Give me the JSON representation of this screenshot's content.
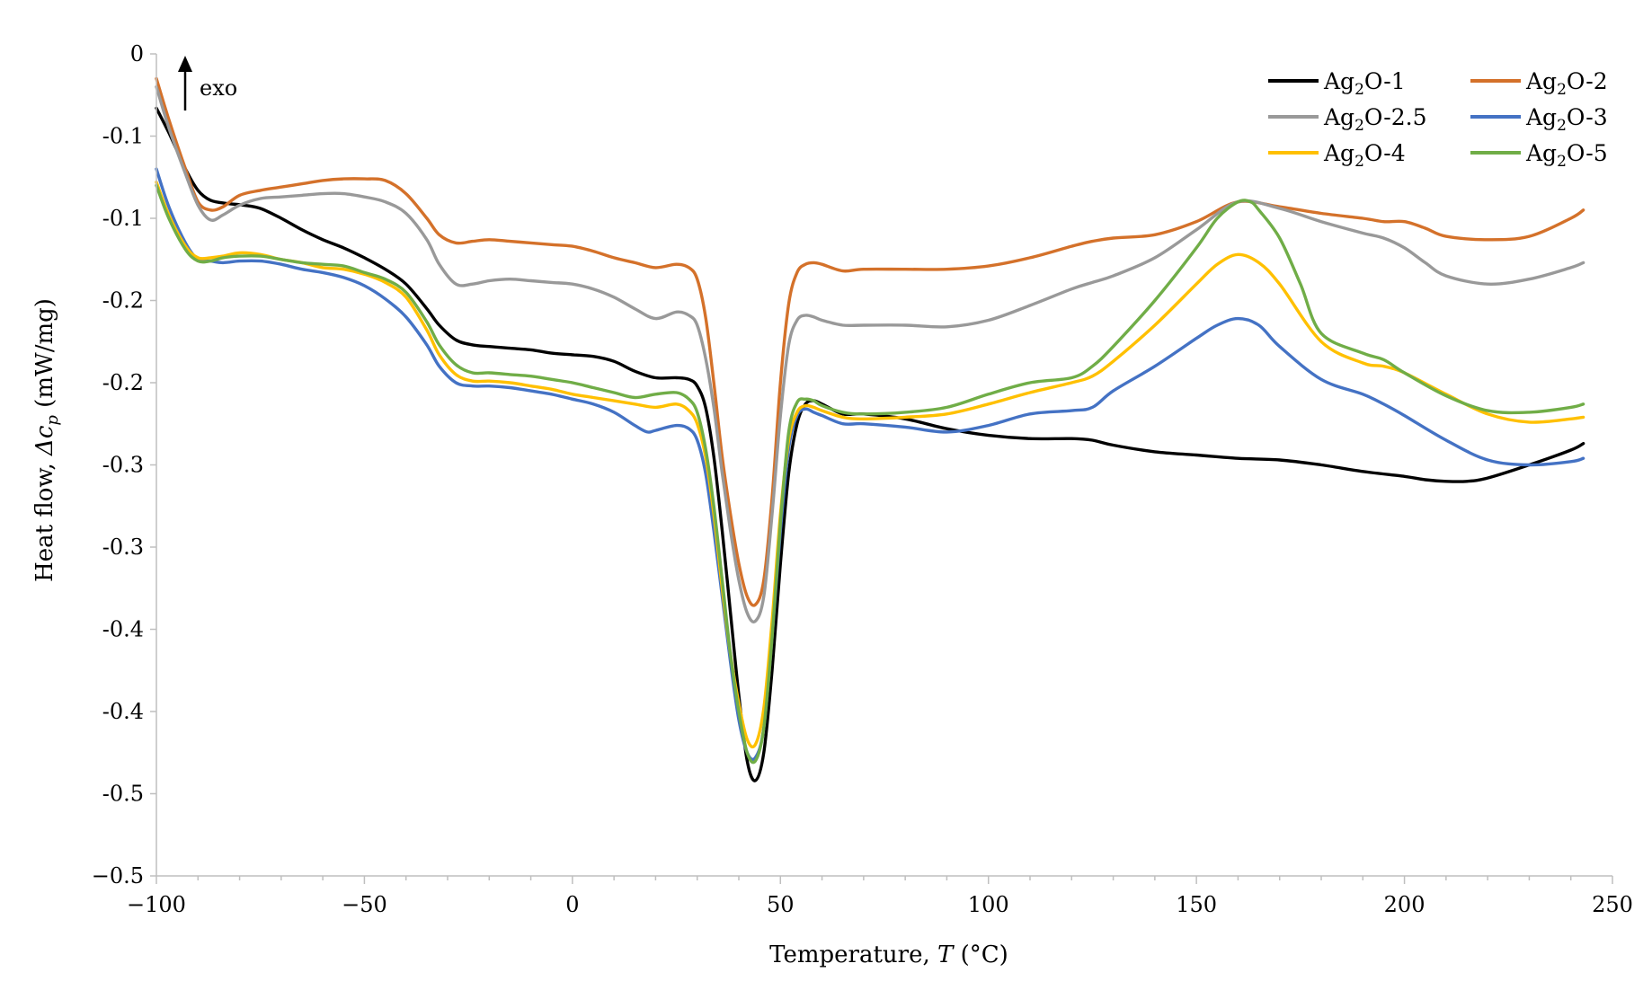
{
  "chart_data": {
    "type": "line",
    "title": "",
    "xlabel_prefix": "Temperature, ",
    "xlabel_var": "T",
    "xlabel_unit": " (°C)",
    "ylabel_prefix": "Heat flow, ",
    "ylabel_var": "Δc",
    "ylabel_sub": "p",
    "ylabel_unit": " (mW/mg)",
    "xlim": [
      -100,
      250
    ],
    "ylim": [
      -0.5,
      0
    ],
    "x_ticks": [
      -100,
      -50,
      0,
      50,
      100,
      150,
      200,
      250
    ],
    "x_tick_labels": [
      "−100",
      "−50",
      "0",
      "50",
      "100",
      "150",
      "200",
      "250"
    ],
    "y_ticks": [
      0,
      -0.05,
      -0.1,
      -0.15,
      -0.2,
      -0.25,
      -0.3,
      -0.35,
      -0.4,
      -0.45,
      -0.5
    ],
    "y_tick_labels": [
      "0",
      "-0.1",
      "-0.1",
      "-0.2",
      "-0.2",
      "-0.3",
      "-0.3",
      "-0.4",
      "-0.4",
      "-0.5",
      "−0.5"
    ],
    "grid": false,
    "annotation": "exo",
    "legend_position": "top-right",
    "series": [
      {
        "name": "Ag2O-1",
        "label_main": "Ag",
        "label_sub": "2",
        "label_rest": "O-1",
        "color": "#000000",
        "x": [
          -100,
          -97,
          -93,
          -90,
          -87,
          -83,
          -79,
          -75,
          -70,
          -65,
          -60,
          -55,
          -50,
          -45,
          -40,
          -35,
          -32,
          -28,
          -24,
          -20,
          -15,
          -10,
          -5,
          0,
          5,
          10,
          0,
          15,
          20,
          25,
          28,
          30,
          32,
          34,
          36,
          38,
          40,
          42,
          44,
          46,
          48,
          50,
          52,
          54,
          56,
          58,
          60,
          65,
          70,
          80,
          90,
          100,
          110,
          120,
          125,
          130,
          140,
          150,
          160,
          170,
          180,
          190,
          200,
          205,
          210,
          215,
          220,
          230,
          240,
          243
        ],
        "y": [
          -0.033,
          -0.048,
          -0.07,
          -0.083,
          -0.089,
          -0.091,
          -0.092,
          -0.094,
          -0.1,
          -0.107,
          -0.113,
          -0.118,
          -0.124,
          -0.131,
          -0.14,
          -0.155,
          -0.165,
          -0.174,
          -0.177,
          -0.178,
          -0.179,
          -0.18,
          -0.182,
          -0.183,
          -0.184,
          -0.187,
          -0.183,
          -0.193,
          -0.197,
          -0.197,
          -0.198,
          -0.202,
          -0.215,
          -0.245,
          -0.29,
          -0.34,
          -0.39,
          -0.43,
          -0.442,
          -0.425,
          -0.375,
          -0.31,
          -0.255,
          -0.225,
          -0.213,
          -0.211,
          -0.213,
          -0.219,
          -0.219,
          -0.222,
          -0.228,
          -0.232,
          -0.234,
          -0.234,
          -0.235,
          -0.238,
          -0.242,
          -0.244,
          -0.246,
          -0.247,
          -0.25,
          -0.254,
          -0.257,
          -0.259,
          -0.26,
          -0.26,
          -0.258,
          -0.25,
          -0.241,
          -0.237
        ]
      },
      {
        "name": "Ag2O-2",
        "label_main": "Ag",
        "label_sub": "2",
        "label_rest": "O-2",
        "color": "#D4712A",
        "x": [
          -100,
          -97,
          -93,
          -90,
          -87,
          -84,
          -80,
          -75,
          -70,
          -65,
          -60,
          -55,
          -50,
          -45,
          -40,
          -35,
          -32,
          -28,
          -24,
          -20,
          -15,
          -10,
          -5,
          0,
          5,
          10,
          15,
          20,
          25,
          28,
          30,
          32,
          34,
          36,
          38,
          40,
          42,
          44,
          46,
          48,
          50,
          52,
          54,
          56,
          58,
          60,
          65,
          70,
          80,
          90,
          100,
          110,
          120,
          125,
          130,
          140,
          150,
          160,
          170,
          180,
          190,
          195,
          200,
          205,
          210,
          220,
          230,
          240,
          243
        ],
        "y": [
          -0.015,
          -0.04,
          -0.07,
          -0.09,
          -0.095,
          -0.093,
          -0.086,
          -0.083,
          -0.081,
          -0.079,
          -0.077,
          -0.076,
          -0.076,
          -0.077,
          -0.085,
          -0.1,
          -0.11,
          -0.115,
          -0.114,
          -0.113,
          -0.114,
          -0.115,
          -0.116,
          -0.117,
          -0.12,
          -0.124,
          -0.127,
          -0.13,
          -0.128,
          -0.13,
          -0.137,
          -0.16,
          -0.2,
          -0.245,
          -0.28,
          -0.31,
          -0.33,
          -0.335,
          -0.32,
          -0.27,
          -0.2,
          -0.152,
          -0.133,
          -0.128,
          -0.127,
          -0.128,
          -0.132,
          -0.131,
          -0.131,
          -0.131,
          -0.129,
          -0.124,
          -0.117,
          -0.114,
          -0.112,
          -0.11,
          -0.102,
          -0.09,
          -0.093,
          -0.097,
          -0.1,
          -0.102,
          -0.102,
          -0.106,
          -0.111,
          -0.113,
          -0.111,
          -0.1,
          -0.095
        ]
      },
      {
        "name": "Ag2O-2.5",
        "label_main": "Ag",
        "label_sub": "2",
        "label_rest": "O-2.5",
        "color": "#999999",
        "x": [
          -100,
          -97,
          -93,
          -90,
          -87,
          -84,
          -80,
          -75,
          -70,
          -65,
          -60,
          -55,
          -50,
          -45,
          -40,
          -35,
          -32,
          -28,
          -24,
          -20,
          -15,
          -10,
          -5,
          0,
          5,
          10,
          15,
          20,
          25,
          28,
          30,
          32,
          34,
          36,
          38,
          40,
          42,
          44,
          46,
          48,
          50,
          52,
          54,
          56,
          58,
          60,
          65,
          70,
          80,
          90,
          100,
          110,
          120,
          125,
          130,
          140,
          150,
          160,
          170,
          180,
          190,
          195,
          200,
          205,
          210,
          220,
          230,
          240,
          243
        ],
        "y": [
          -0.02,
          -0.045,
          -0.073,
          -0.092,
          -0.101,
          -0.098,
          -0.092,
          -0.088,
          -0.087,
          -0.086,
          -0.085,
          -0.085,
          -0.087,
          -0.09,
          -0.097,
          -0.113,
          -0.128,
          -0.14,
          -0.14,
          -0.138,
          -0.137,
          -0.138,
          -0.139,
          -0.14,
          -0.143,
          -0.148,
          -0.155,
          -0.161,
          -0.157,
          -0.159,
          -0.165,
          -0.185,
          -0.215,
          -0.255,
          -0.29,
          -0.32,
          -0.34,
          -0.345,
          -0.33,
          -0.28,
          -0.22,
          -0.177,
          -0.162,
          -0.159,
          -0.16,
          -0.162,
          -0.165,
          -0.165,
          -0.165,
          -0.166,
          -0.162,
          -0.153,
          -0.143,
          -0.139,
          -0.135,
          -0.124,
          -0.107,
          -0.09,
          -0.094,
          -0.102,
          -0.109,
          -0.112,
          -0.118,
          -0.127,
          -0.135,
          -0.14,
          -0.137,
          -0.13,
          -0.127
        ]
      },
      {
        "name": "Ag2O-3",
        "label_main": "Ag",
        "label_sub": "2",
        "label_rest": "O-3",
        "color": "#4472C4",
        "x": [
          -100,
          -97,
          -93,
          -90,
          -87,
          -84,
          -80,
          -75,
          -70,
          -65,
          -60,
          -55,
          -50,
          -45,
          -40,
          -35,
          -32,
          -28,
          -24,
          -20,
          -15,
          -10,
          -5,
          0,
          5,
          10,
          15,
          18,
          20,
          25,
          28,
          30,
          32,
          34,
          36,
          38,
          40,
          42,
          44,
          46,
          48,
          50,
          52,
          54,
          56,
          58,
          60,
          65,
          70,
          80,
          90,
          100,
          110,
          120,
          125,
          130,
          140,
          150,
          155,
          160,
          165,
          170,
          180,
          190,
          195,
          200,
          210,
          220,
          230,
          240,
          243
        ],
        "y": [
          -0.07,
          -0.093,
          -0.115,
          -0.125,
          -0.126,
          -0.127,
          -0.126,
          -0.126,
          -0.128,
          -0.131,
          -0.133,
          -0.136,
          -0.141,
          -0.149,
          -0.16,
          -0.177,
          -0.19,
          -0.2,
          -0.202,
          -0.202,
          -0.203,
          -0.205,
          -0.207,
          -0.21,
          -0.213,
          -0.218,
          -0.226,
          -0.23,
          -0.229,
          -0.226,
          -0.228,
          -0.235,
          -0.255,
          -0.29,
          -0.33,
          -0.37,
          -0.405,
          -0.425,
          -0.428,
          -0.41,
          -0.355,
          -0.29,
          -0.24,
          -0.22,
          -0.216,
          -0.218,
          -0.22,
          -0.225,
          -0.225,
          -0.227,
          -0.23,
          -0.226,
          -0.219,
          -0.217,
          -0.215,
          -0.205,
          -0.19,
          -0.173,
          -0.165,
          -0.161,
          -0.165,
          -0.178,
          -0.198,
          -0.207,
          -0.213,
          -0.22,
          -0.235,
          -0.247,
          -0.25,
          -0.248,
          -0.246
        ]
      },
      {
        "name": "Ag2O-4",
        "label_main": "Ag",
        "label_sub": "2",
        "label_rest": "O-4",
        "color": "#FFC000",
        "x": [
          -100,
          -97,
          -93,
          -90,
          -87,
          -84,
          -80,
          -75,
          -70,
          -65,
          -60,
          -55,
          -50,
          -45,
          -40,
          -35,
          -32,
          -28,
          -24,
          -20,
          -15,
          -10,
          -5,
          0,
          5,
          10,
          15,
          20,
          25,
          28,
          30,
          32,
          34,
          36,
          38,
          40,
          42,
          44,
          46,
          48,
          50,
          52,
          54,
          56,
          58,
          60,
          65,
          70,
          80,
          90,
          100,
          110,
          120,
          125,
          130,
          140,
          150,
          155,
          160,
          165,
          170,
          180,
          190,
          195,
          200,
          210,
          220,
          230,
          240,
          243
        ],
        "y": [
          -0.078,
          -0.098,
          -0.117,
          -0.124,
          -0.124,
          -0.123,
          -0.121,
          -0.122,
          -0.125,
          -0.127,
          -0.13,
          -0.131,
          -0.134,
          -0.139,
          -0.148,
          -0.168,
          -0.183,
          -0.195,
          -0.199,
          -0.199,
          -0.2,
          -0.202,
          -0.204,
          -0.207,
          -0.209,
          -0.211,
          -0.213,
          -0.215,
          -0.213,
          -0.217,
          -0.225,
          -0.245,
          -0.28,
          -0.325,
          -0.365,
          -0.395,
          -0.417,
          -0.42,
          -0.398,
          -0.345,
          -0.28,
          -0.235,
          -0.218,
          -0.214,
          -0.215,
          -0.217,
          -0.221,
          -0.222,
          -0.221,
          -0.219,
          -0.213,
          -0.206,
          -0.2,
          -0.196,
          -0.187,
          -0.165,
          -0.14,
          -0.128,
          -0.122,
          -0.127,
          -0.14,
          -0.175,
          -0.188,
          -0.19,
          -0.194,
          -0.207,
          -0.219,
          -0.224,
          -0.222,
          -0.221
        ]
      },
      {
        "name": "Ag2O-5",
        "label_main": "Ag",
        "label_sub": "2",
        "label_rest": "O-5",
        "color": "#70AD47",
        "x": [
          -100,
          -97,
          -93,
          -90,
          -87,
          -84,
          -80,
          -75,
          -70,
          -65,
          -60,
          -55,
          -50,
          -45,
          -40,
          -35,
          -32,
          -28,
          -24,
          -20,
          -15,
          -10,
          -5,
          0,
          5,
          10,
          15,
          20,
          25,
          28,
          30,
          32,
          34,
          36,
          38,
          40,
          42,
          44,
          46,
          48,
          50,
          52,
          54,
          56,
          58,
          60,
          65,
          70,
          80,
          90,
          100,
          110,
          120,
          125,
          130,
          140,
          150,
          155,
          160,
          163,
          165,
          170,
          175,
          180,
          190,
          195,
          200,
          210,
          220,
          230,
          240,
          243
        ],
        "y": [
          -0.08,
          -0.1,
          -0.119,
          -0.126,
          -0.126,
          -0.124,
          -0.123,
          -0.123,
          -0.125,
          -0.127,
          -0.128,
          -0.129,
          -0.133,
          -0.137,
          -0.145,
          -0.163,
          -0.177,
          -0.189,
          -0.194,
          -0.194,
          -0.195,
          -0.196,
          -0.198,
          -0.2,
          -0.203,
          -0.206,
          -0.209,
          -0.207,
          -0.206,
          -0.21,
          -0.218,
          -0.24,
          -0.275,
          -0.32,
          -0.365,
          -0.4,
          -0.425,
          -0.43,
          -0.41,
          -0.355,
          -0.285,
          -0.23,
          -0.212,
          -0.21,
          -0.211,
          -0.214,
          -0.218,
          -0.219,
          -0.218,
          -0.215,
          -0.207,
          -0.2,
          -0.197,
          -0.19,
          -0.178,
          -0.15,
          -0.118,
          -0.1,
          -0.09,
          -0.09,
          -0.095,
          -0.112,
          -0.14,
          -0.17,
          -0.182,
          -0.186,
          -0.194,
          -0.208,
          -0.217,
          -0.218,
          -0.215,
          -0.213
        ]
      }
    ]
  }
}
